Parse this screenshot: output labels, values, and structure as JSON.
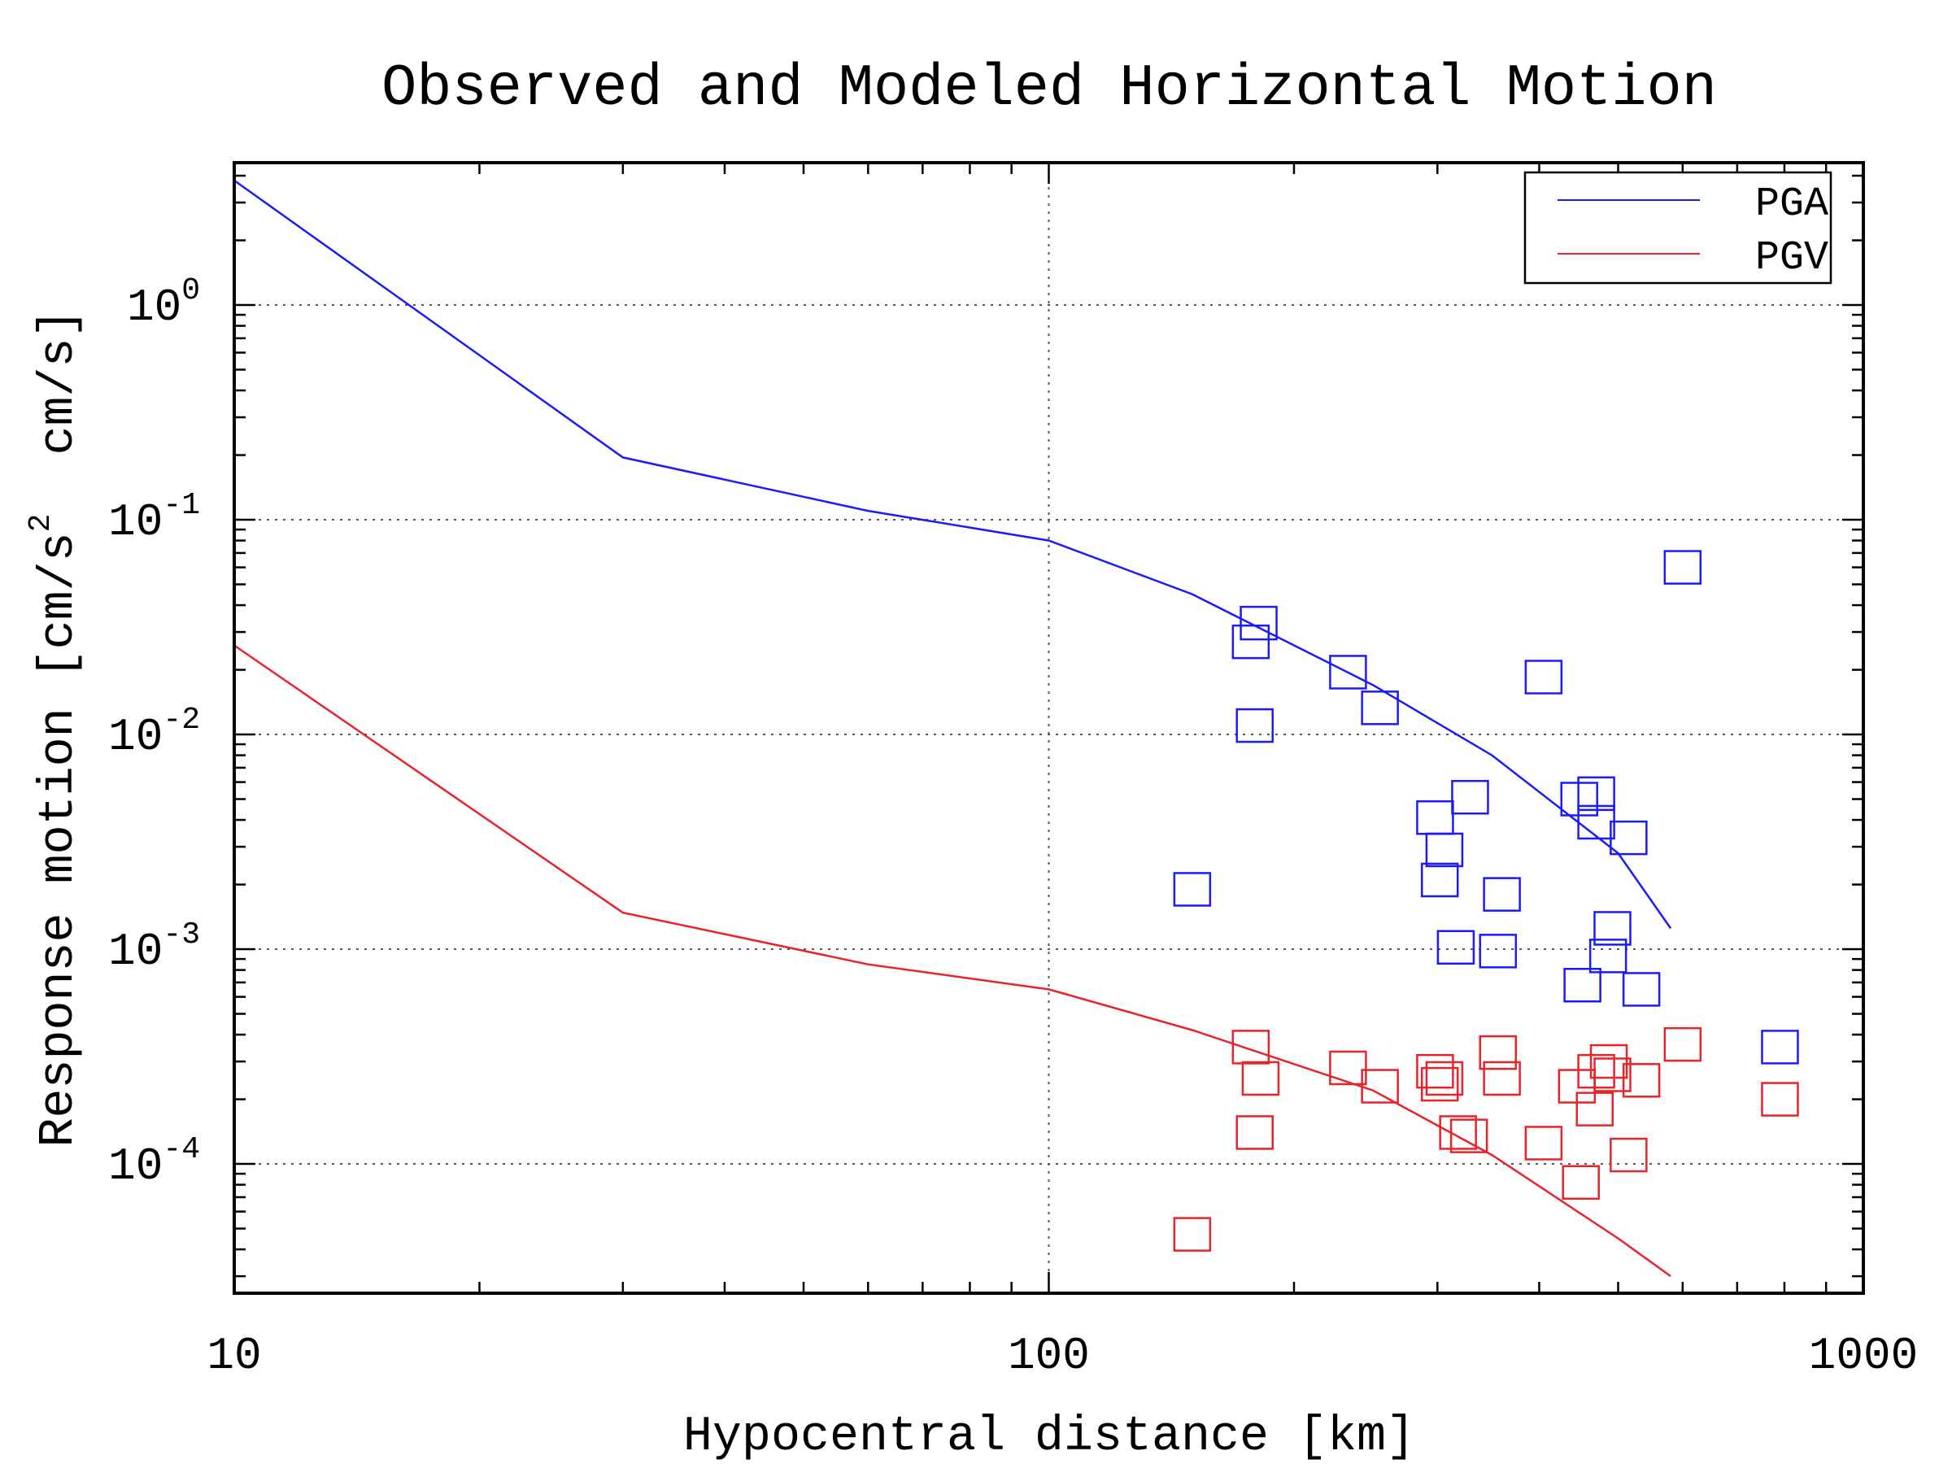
{
  "chart_data": {
    "type": "scatter",
    "title": "Observed and Modeled Horizontal Motion",
    "xlabel": "Hypocentral distance [km]",
    "ylabel_parts": [
      "Response motion [cm/s",
      "2",
      "  cm/s]"
    ],
    "x_scale": "log",
    "y_scale": "log",
    "xlim": [
      10,
      1000
    ],
    "ylim": [
      2.5e-05,
      4.6
    ],
    "grid": true,
    "legend_position": "top-right",
    "x_ticks": [
      {
        "value": 10,
        "label": "10"
      },
      {
        "value": 100,
        "label": "100"
      },
      {
        "value": 1000,
        "label": "1000"
      }
    ],
    "y_ticks": [
      {
        "value": 1,
        "base": "10",
        "exp": "0"
      },
      {
        "value": 0.1,
        "base": "10",
        "exp": "-1"
      },
      {
        "value": 0.01,
        "base": "10",
        "exp": "-2"
      },
      {
        "value": 0.001,
        "base": "10",
        "exp": "-3"
      },
      {
        "value": 0.0001,
        "base": "10",
        "exp": "-4"
      }
    ],
    "series": [
      {
        "name": "PGA",
        "color": "#1a1aff",
        "line": [
          [
            10,
            3.8
          ],
          [
            30,
            0.195
          ],
          [
            60,
            0.11
          ],
          [
            100,
            0.08
          ],
          [
            150,
            0.045
          ],
          [
            250,
            0.017
          ],
          [
            350,
            0.008
          ],
          [
            500,
            0.0028
          ],
          [
            580,
            0.00125
          ]
        ],
        "points": [
          [
            150,
            0.0019
          ],
          [
            177,
            0.027
          ],
          [
            181,
            0.033
          ],
          [
            179,
            0.011
          ],
          [
            233,
            0.0195
          ],
          [
            255,
            0.0133
          ],
          [
            298,
            0.0041
          ],
          [
            302,
            0.0021
          ],
          [
            306,
            0.0029
          ],
          [
            316,
            0.00102
          ],
          [
            329,
            0.0051
          ],
          [
            356,
            0.00098
          ],
          [
            360,
            0.0018
          ],
          [
            405,
            0.0185
          ],
          [
            448,
            0.005
          ],
          [
            452,
            0.00068
          ],
          [
            470,
            0.0053
          ],
          [
            470,
            0.0039
          ],
          [
            486,
            0.00093
          ],
          [
            492,
            0.00125
          ],
          [
            515,
            0.0033
          ],
          [
            534,
            0.00065
          ],
          [
            600,
            0.06
          ],
          [
            790,
            0.00035
          ]
        ]
      },
      {
        "name": "PGV",
        "color": "#e8232a",
        "line": [
          [
            10,
            0.026
          ],
          [
            30,
            0.00148
          ],
          [
            60,
            0.00085
          ],
          [
            100,
            0.00065
          ],
          [
            150,
            0.00042
          ],
          [
            250,
            0.00022
          ],
          [
            350,
            0.00011
          ],
          [
            500,
            4.5e-05
          ],
          [
            580,
            3e-05
          ]
        ],
        "points": [
          [
            150,
            4.7e-05
          ],
          [
            177,
            0.00035
          ],
          [
            179,
            0.00014
          ],
          [
            182,
            0.00025
          ],
          [
            233,
            0.00028
          ],
          [
            255,
            0.00023
          ],
          [
            298,
            0.00027
          ],
          [
            302,
            0.000235
          ],
          [
            306,
            0.00025
          ],
          [
            318,
            0.00014
          ],
          [
            328,
            0.000135
          ],
          [
            356,
            0.00033
          ],
          [
            360,
            0.00025
          ],
          [
            405,
            0.000125
          ],
          [
            445,
            0.00023
          ],
          [
            450,
            8.2e-05
          ],
          [
            468,
            0.00018
          ],
          [
            470,
            0.00027
          ],
          [
            487,
            0.0003
          ],
          [
            492,
            0.00026
          ],
          [
            515,
            0.00011
          ],
          [
            534,
            0.000245
          ],
          [
            600,
            0.00036
          ],
          [
            790,
            0.0002
          ]
        ]
      }
    ]
  }
}
